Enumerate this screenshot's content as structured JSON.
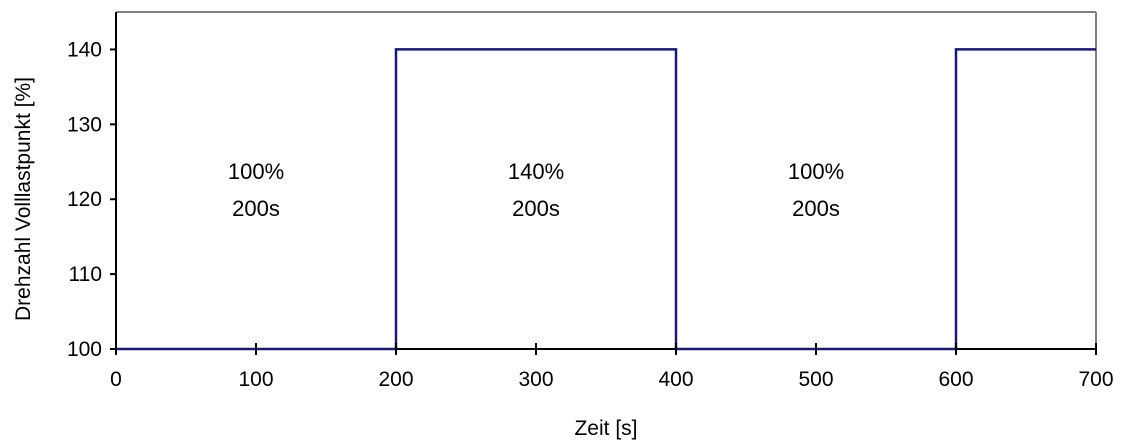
{
  "chart_data": {
    "type": "line",
    "title": "",
    "xlabel": "Zeit [s]",
    "ylabel": "Drehzahl Volllastpunkt [%]",
    "xlim": [
      0,
      700
    ],
    "ylim": [
      100,
      145
    ],
    "xticks": [
      0,
      100,
      200,
      300,
      400,
      500,
      600,
      700
    ],
    "yticks": [
      100,
      110,
      120,
      130,
      140
    ],
    "grid": false,
    "legend": "none",
    "series": [
      {
        "step": true,
        "color": "#1a1a6e",
        "x": [
          0,
          200,
          200,
          400,
          400,
          600,
          600,
          700
        ],
        "y": [
          100,
          100,
          140,
          140,
          100,
          100,
          140,
          140
        ]
      }
    ],
    "annotations": [
      {
        "x": 100,
        "line1": "100%",
        "line2": "200s"
      },
      {
        "x": 300,
        "line1": "140%",
        "line2": "200s"
      },
      {
        "x": 500,
        "line1": "100%",
        "line2": "200s"
      }
    ]
  }
}
